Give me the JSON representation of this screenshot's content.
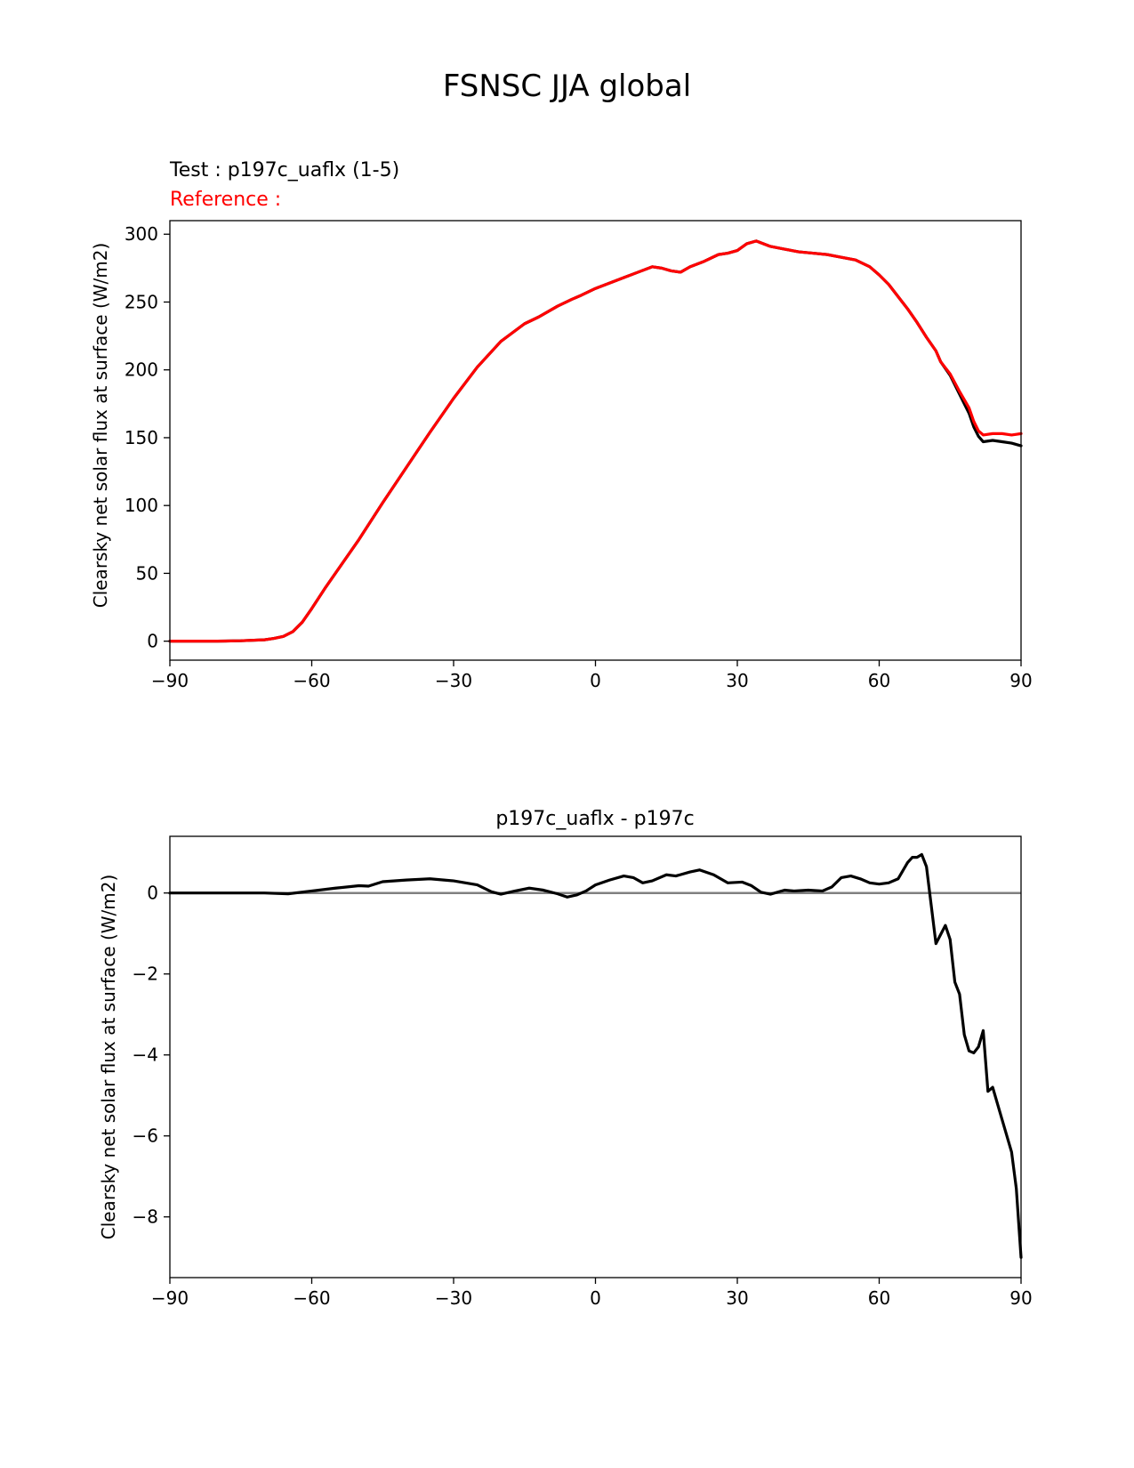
{
  "figure_title": "FSNSC JJA global",
  "colors": {
    "test": "#000000",
    "reference": "#ff0000",
    "zero_line": "#808080",
    "reference_label": "#ff0000"
  },
  "chart_data": [
    {
      "type": "line",
      "title_left_test": "Test : p197c_uaflx (1-5)",
      "title_left_reference": "Reference :",
      "xlabel": "",
      "ylabel": "Clearsky net solar flux at surface (W/m2)",
      "xlim": [
        -90,
        90
      ],
      "ylim": [
        -14,
        310
      ],
      "xticks": [
        -90,
        -60,
        -30,
        0,
        30,
        60,
        90
      ],
      "xtick_labels": [
        "−90",
        "−60",
        "−30",
        "0",
        "30",
        "60",
        "90"
      ],
      "yticks": [
        0,
        50,
        100,
        150,
        200,
        250,
        300
      ],
      "ytick_labels": [
        "0",
        "50",
        "100",
        "150",
        "200",
        "250",
        "300"
      ],
      "series": [
        {
          "name": "test",
          "color": "#000000",
          "x": [
            -90,
            -80,
            -75,
            -70,
            -68,
            -66,
            -64,
            -62,
            -60,
            -57,
            -54,
            -50,
            -45,
            -40,
            -35,
            -30,
            -25,
            -20,
            -15,
            -12,
            -8,
            -5,
            -3,
            0,
            3,
            6,
            9,
            12,
            14,
            16,
            18,
            20,
            23,
            26,
            28,
            30,
            32,
            34,
            37,
            40,
            43,
            46,
            49,
            52,
            55,
            58,
            60,
            62,
            64,
            66,
            68,
            70,
            72,
            73,
            75,
            77,
            79,
            80,
            81,
            82,
            84,
            86,
            88,
            90
          ],
          "y": [
            0,
            0,
            0.3,
            1,
            2,
            3.5,
            7,
            14,
            24,
            40,
            55,
            75,
            102,
            128,
            154,
            179,
            202,
            221,
            234,
            239,
            247,
            252,
            255,
            260,
            264,
            268,
            272,
            276,
            275,
            273,
            272,
            276,
            280,
            285,
            286,
            288,
            293,
            295,
            291,
            289,
            287,
            286,
            285,
            283,
            281,
            276,
            270,
            263,
            254,
            245,
            235,
            224,
            214,
            206,
            196,
            182,
            168,
            158,
            151,
            147,
            148,
            147,
            146,
            144
          ]
        },
        {
          "name": "reference",
          "color": "#ff0000",
          "x": [
            -90,
            -80,
            -75,
            -70,
            -68,
            -66,
            -64,
            -62,
            -60,
            -57,
            -54,
            -50,
            -45,
            -40,
            -35,
            -30,
            -25,
            -20,
            -15,
            -12,
            -8,
            -5,
            -3,
            0,
            3,
            6,
            9,
            12,
            14,
            16,
            18,
            20,
            23,
            26,
            28,
            30,
            32,
            34,
            37,
            40,
            43,
            46,
            49,
            52,
            55,
            58,
            60,
            62,
            64,
            66,
            68,
            70,
            72,
            73,
            75,
            77,
            79,
            80,
            81,
            82,
            84,
            86,
            88,
            90
          ],
          "y": [
            0,
            0,
            0.3,
            1,
            2,
            3.5,
            7,
            14,
            24,
            40,
            55,
            75,
            102,
            128,
            154,
            179,
            202,
            221,
            234,
            239,
            247,
            252,
            255,
            260,
            264,
            268,
            272,
            276,
            275,
            273,
            272,
            276,
            280,
            285,
            286,
            288,
            293,
            295,
            291,
            289,
            287,
            286,
            285,
            283,
            281,
            276,
            270,
            263,
            254,
            245,
            235,
            224,
            214,
            206,
            197,
            184,
            172,
            162,
            155,
            152,
            153,
            153,
            152,
            153
          ]
        }
      ]
    },
    {
      "type": "line",
      "title": "p197c_uaflx - p197c",
      "xlabel": "",
      "ylabel": "Clearsky net solar flux at surface (W/m2)",
      "xlim": [
        -90,
        90
      ],
      "ylim": [
        -9.5,
        1.4
      ],
      "xticks": [
        -90,
        -60,
        -30,
        0,
        30,
        60,
        90
      ],
      "xtick_labels": [
        "−90",
        "−60",
        "−30",
        "0",
        "30",
        "60",
        "90"
      ],
      "yticks": [
        0,
        -2,
        -4,
        -6,
        -8
      ],
      "ytick_labels": [
        "0",
        "−2",
        "−4",
        "−6",
        "−8"
      ],
      "zero_line": true,
      "series": [
        {
          "name": "difference",
          "color": "#000000",
          "x": [
            -90,
            -70,
            -65,
            -60,
            -55,
            -50,
            -48,
            -45,
            -40,
            -35,
            -30,
            -25,
            -22,
            -20,
            -17,
            -14,
            -11,
            -8,
            -6,
            -4,
            -2,
            0,
            3,
            6,
            8,
            10,
            12,
            15,
            17,
            20,
            22,
            25,
            28,
            31,
            33,
            35,
            37,
            40,
            42,
            45,
            48,
            50,
            52,
            54,
            56,
            58,
            60,
            62,
            64,
            66,
            67,
            68,
            69,
            70,
            71,
            72,
            74,
            75,
            76,
            77,
            78,
            79,
            80,
            81,
            82,
            83,
            84,
            86,
            88,
            89,
            90
          ],
          "y": [
            0,
            0,
            -0.02,
            0.05,
            0.12,
            0.18,
            0.17,
            0.28,
            0.32,
            0.35,
            0.3,
            0.2,
            0.03,
            -0.03,
            0.05,
            0.12,
            0.07,
            -0.02,
            -0.1,
            -0.05,
            0.05,
            0.2,
            0.32,
            0.42,
            0.38,
            0.25,
            0.3,
            0.45,
            0.42,
            0.52,
            0.57,
            0.45,
            0.25,
            0.27,
            0.18,
            0.02,
            -0.03,
            0.07,
            0.05,
            0.07,
            0.05,
            0.15,
            0.38,
            0.42,
            0.35,
            0.25,
            0.22,
            0.25,
            0.35,
            0.75,
            0.88,
            0.88,
            0.95,
            0.65,
            -0.3,
            -1.25,
            -0.8,
            -1.15,
            -2.2,
            -2.5,
            -3.5,
            -3.9,
            -3.95,
            -3.8,
            -3.4,
            -4.9,
            -4.8,
            -5.6,
            -6.4,
            -7.3,
            -9.0
          ]
        }
      ]
    }
  ]
}
